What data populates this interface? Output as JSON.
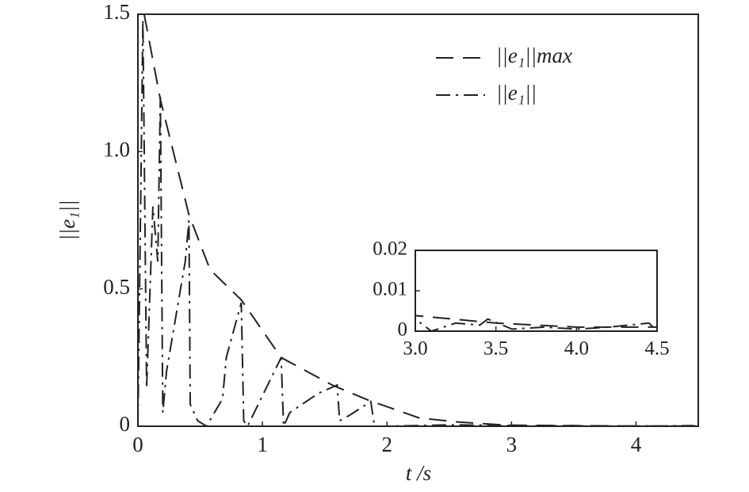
{
  "chart_data": [
    {
      "type": "line",
      "xlabel": "t /s",
      "ylabel": "||e₁||",
      "xlim": [
        0,
        4.5
      ],
      "ylim": [
        0,
        1.5
      ],
      "xticks": [
        0,
        1,
        2,
        3,
        4
      ],
      "yticks": [
        0,
        0.5,
        {
          "value": 1,
          "label": "1.0"
        },
        1.5
      ],
      "legend": "upper right",
      "series": [
        {
          "name": "||e₁||max",
          "color": "#222222",
          "linestyle": "dashed",
          "x": [
            0.05,
            0.18,
            0.41,
            0.58,
            0.83,
            1.15,
            1.56,
            1.85,
            2.26,
            2.58,
            2.96,
            3.5,
            4.0,
            4.5
          ],
          "values": [
            1.5,
            1.19,
            0.77,
            0.57,
            0.46,
            0.25,
            0.15,
            0.095,
            0.03,
            0.015,
            0.004,
            0.002,
            0.001,
            0.001
          ]
        },
        {
          "name": "||e₁||",
          "color": "#222222",
          "linestyle": "dashdot",
          "x": [
            0,
            0.04,
            0.07,
            0.12,
            0.16,
            0.18,
            0.2,
            0.23,
            0.38,
            0.41,
            0.42,
            0.48,
            0.55,
            0.68,
            0.71,
            0.83,
            0.85,
            0.88,
            1.15,
            1.17,
            1.22,
            1.45,
            1.6,
            1.62,
            1.7,
            1.87,
            1.9,
            2.0,
            2.5,
            3.0,
            3.1,
            3.25,
            3.4,
            3.45,
            3.6,
            3.8,
            4.0,
            4.2,
            4.45,
            4.5
          ],
          "values": [
            0,
            1.48,
            0.14,
            0.8,
            0.6,
            1.2,
            0.05,
            0.2,
            0.6,
            0.75,
            0.08,
            0.02,
            0,
            0.1,
            0.25,
            0.45,
            0.02,
            0,
            0.25,
            0,
            0.05,
            0.12,
            0.15,
            0.02,
            0.04,
            0.09,
            0,
            0,
            0.005,
            0.003,
            0,
            0.002,
            0.0015,
            0.003,
            0.0005,
            0.001,
            0.0005,
            0.001,
            0.002,
            0
          ]
        }
      ]
    },
    {
      "type": "inset",
      "xlim": [
        3,
        4.5
      ],
      "ylim": [
        0,
        0.02
      ],
      "xticks": [
        {
          "value": 3,
          "label": "3.0"
        },
        {
          "value": 3.5,
          "label": "3.5"
        },
        {
          "value": 4,
          "label": "4.0"
        },
        {
          "value": 4.5,
          "label": "4.5"
        }
      ],
      "yticks": [
        0,
        0.01,
        0.02
      ]
    }
  ]
}
